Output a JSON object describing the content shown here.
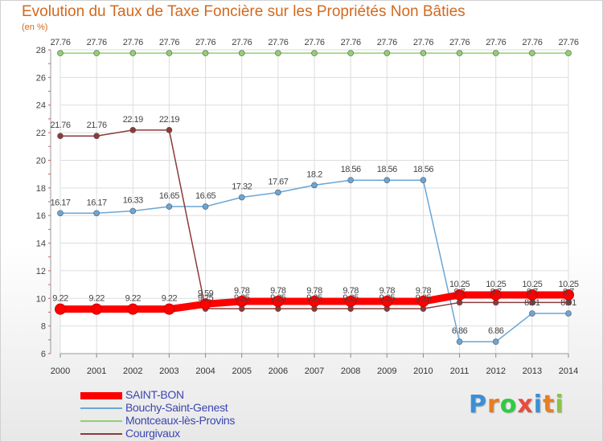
{
  "title": "Evolution du Taux de Taxe Foncière sur les Propriétés Non Bâties",
  "subtitle": "(en %)",
  "logo": {
    "letters": [
      "P",
      "r",
      "o",
      "x",
      "i",
      "t",
      "i"
    ],
    "colors": [
      "#3a8fd6",
      "#e67e22",
      "#2ecc40",
      "#e74c3c",
      "#3a8fd6",
      "#e67e22",
      "#8bc34a"
    ]
  },
  "chart_data": {
    "type": "line",
    "title": "Evolution du Taux de Taxe Foncière sur les Propriétés Non Bâties",
    "ylabel": "(en %)",
    "x": [
      "2000",
      "2001",
      "2002",
      "2003",
      "2004",
      "2005",
      "2006",
      "2007",
      "2008",
      "2009",
      "2010",
      "2011",
      "2012",
      "2013",
      "2014"
    ],
    "ylim": [
      6,
      28
    ],
    "yticks": [
      6,
      8,
      10,
      12,
      14,
      16,
      18,
      20,
      22,
      24,
      26,
      28
    ],
    "grid": true,
    "legend": "bottom-left",
    "series": [
      {
        "name": "SAINT-BON",
        "color": "#ff0000",
        "values": [
          9.22,
          9.22,
          9.22,
          9.22,
          9.59,
          9.78,
          9.78,
          9.78,
          9.78,
          9.78,
          9.78,
          10.25,
          10.25,
          10.25,
          10.25
        ],
        "labels": [
          "9.22",
          "9.22",
          "9.22",
          "9.22",
          "9.59",
          "9.78",
          "9.78",
          "9.78",
          "9.78",
          "9.78",
          "9.78",
          "10.25",
          "10.25",
          "10.25",
          "10.25"
        ]
      },
      {
        "name": "Bouchy-Saint-Genest",
        "color": "#6aa6d6",
        "values": [
          16.17,
          16.17,
          16.33,
          16.65,
          16.65,
          17.32,
          17.67,
          18.2,
          18.56,
          18.56,
          18.56,
          6.86,
          6.86,
          8.91,
          8.91
        ],
        "labels": [
          "16.17",
          "16.17",
          "16.33",
          "16.65",
          "16.65",
          "17.32",
          "17.67",
          "18.2",
          "18.56",
          "18.56",
          "18.56",
          "6.86",
          "6.86",
          "8.91",
          "8.91"
        ]
      },
      {
        "name": "Montceaux-lès-Provins",
        "color": "#90d070",
        "values": [
          27.76,
          27.76,
          27.76,
          27.76,
          27.76,
          27.76,
          27.76,
          27.76,
          27.76,
          27.76,
          27.76,
          27.76,
          27.76,
          27.76,
          27.76
        ],
        "labels": [
          "27.76",
          "27.76",
          "27.76",
          "27.76",
          "27.76",
          "27.76",
          "27.76",
          "27.76",
          "27.76",
          "27.76",
          "27.76",
          "27.76",
          "27.76",
          "27.76",
          "27.76"
        ]
      },
      {
        "name": "Courgivaux",
        "color": "#8b3a3a",
        "values": [
          21.76,
          21.76,
          22.19,
          22.19,
          9.25,
          9.25,
          9.25,
          9.25,
          9.25,
          9.25,
          9.25,
          9.7,
          9.7,
          9.7,
          9.7
        ],
        "labels": [
          "21.76",
          "21.76",
          "22.19",
          "22.19",
          "9.25",
          "9.25",
          "9.25",
          "9.25",
          "9.25",
          "9.25",
          "9.25",
          "9.7",
          "9.7",
          "9.7",
          "9.7"
        ]
      }
    ]
  }
}
